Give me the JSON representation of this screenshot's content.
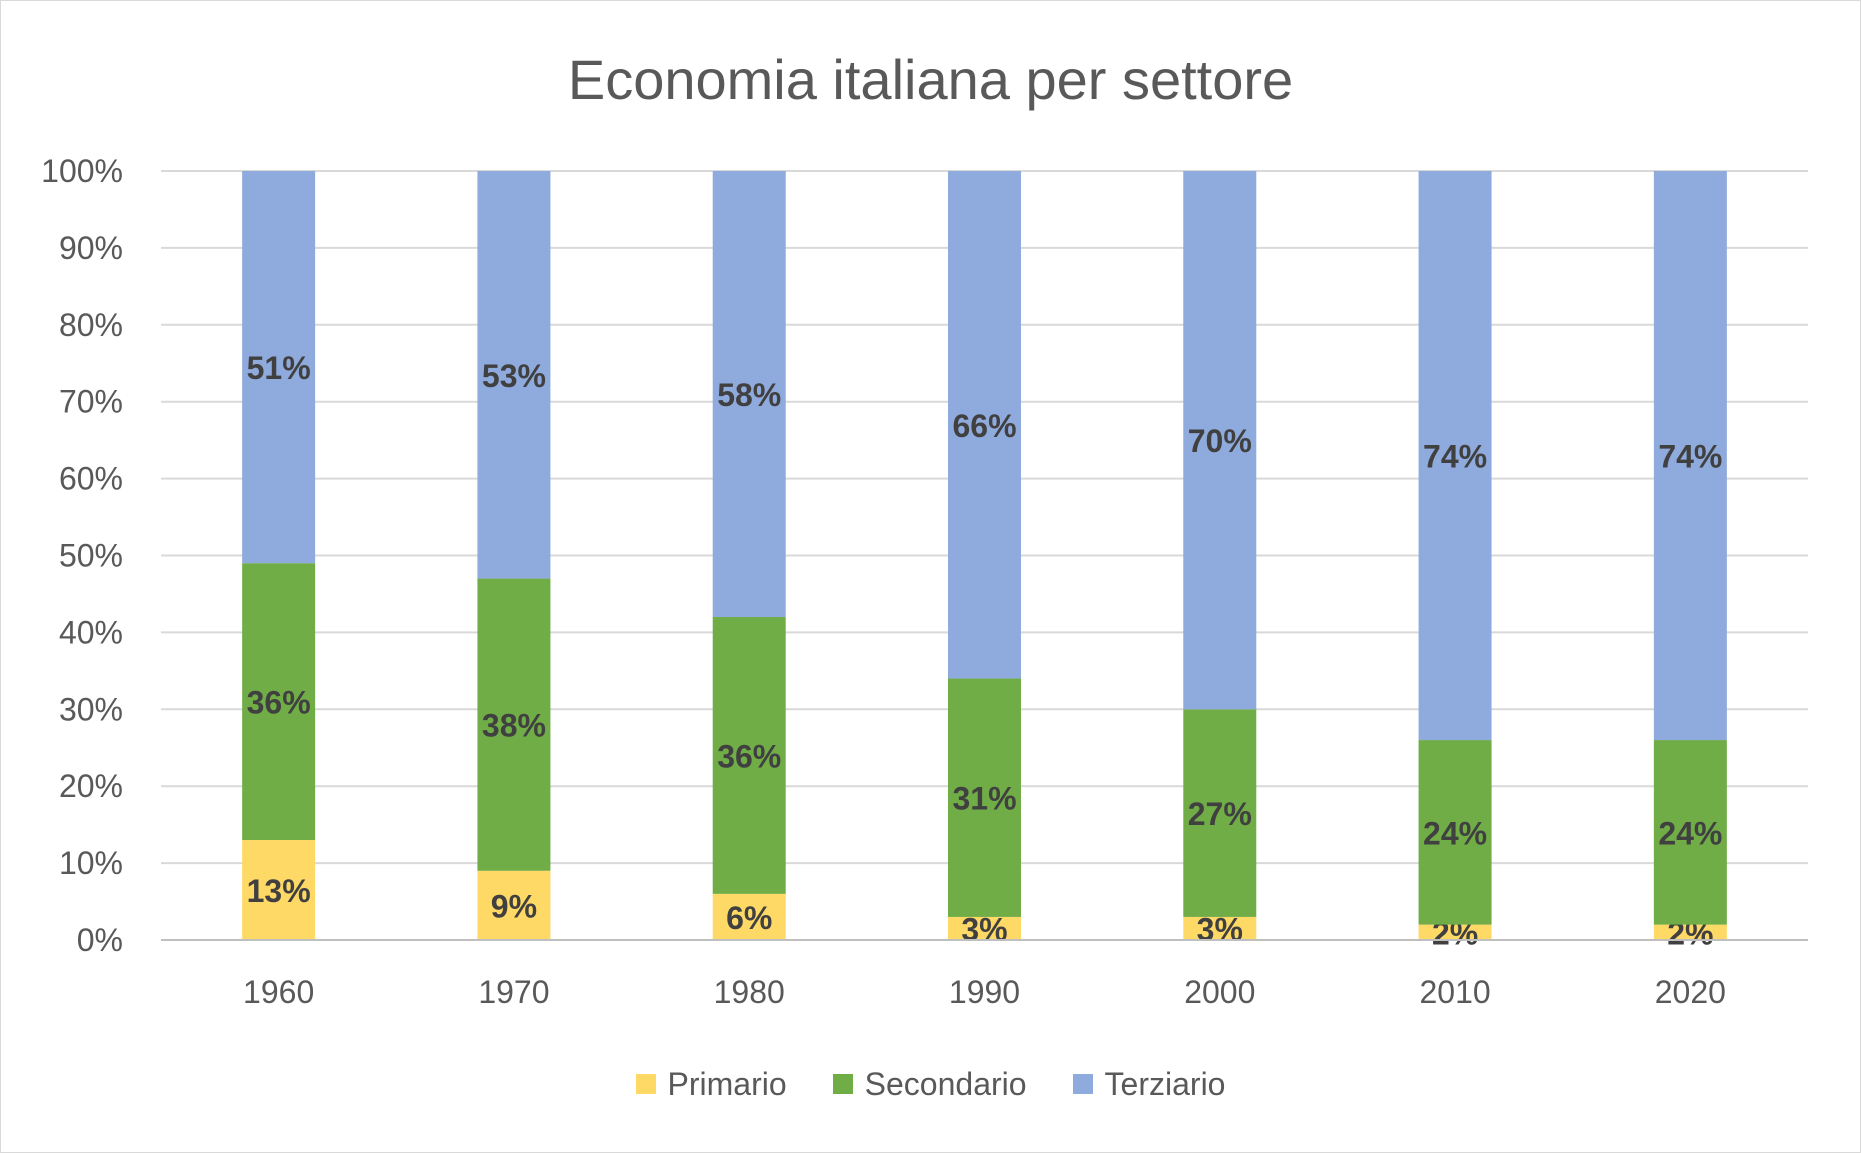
{
  "chart_data": {
    "type": "bar",
    "stacked": true,
    "title": "Economia italiana per settore",
    "categories": [
      "1960",
      "1970",
      "1980",
      "1990",
      "2000",
      "2010",
      "2020"
    ],
    "series": [
      {
        "name": "Primario",
        "color": "#FFD966",
        "values": [
          13,
          9,
          6,
          3,
          3,
          2,
          2
        ],
        "labels": [
          "13%",
          "9%",
          "6%",
          "3%",
          "3%",
          "2%",
          "2%"
        ]
      },
      {
        "name": "Secondario",
        "color": "#70AD47",
        "values": [
          36,
          38,
          36,
          31,
          27,
          24,
          24
        ],
        "labels": [
          "36%",
          "38%",
          "36%",
          "31%",
          "27%",
          "24%",
          "24%"
        ]
      },
      {
        "name": "Terziario",
        "color": "#8FAADC",
        "values": [
          51,
          53,
          58,
          66,
          70,
          74,
          74
        ],
        "labels": [
          "51%",
          "53%",
          "58%",
          "66%",
          "70%",
          "74%",
          "74%"
        ]
      }
    ],
    "y_ticks": [
      "0%",
      "10%",
      "20%",
      "30%",
      "40%",
      "50%",
      "60%",
      "70%",
      "80%",
      "90%",
      "100%"
    ],
    "ylim": [
      0,
      100
    ],
    "grid": true,
    "legend_position": "bottom"
  }
}
